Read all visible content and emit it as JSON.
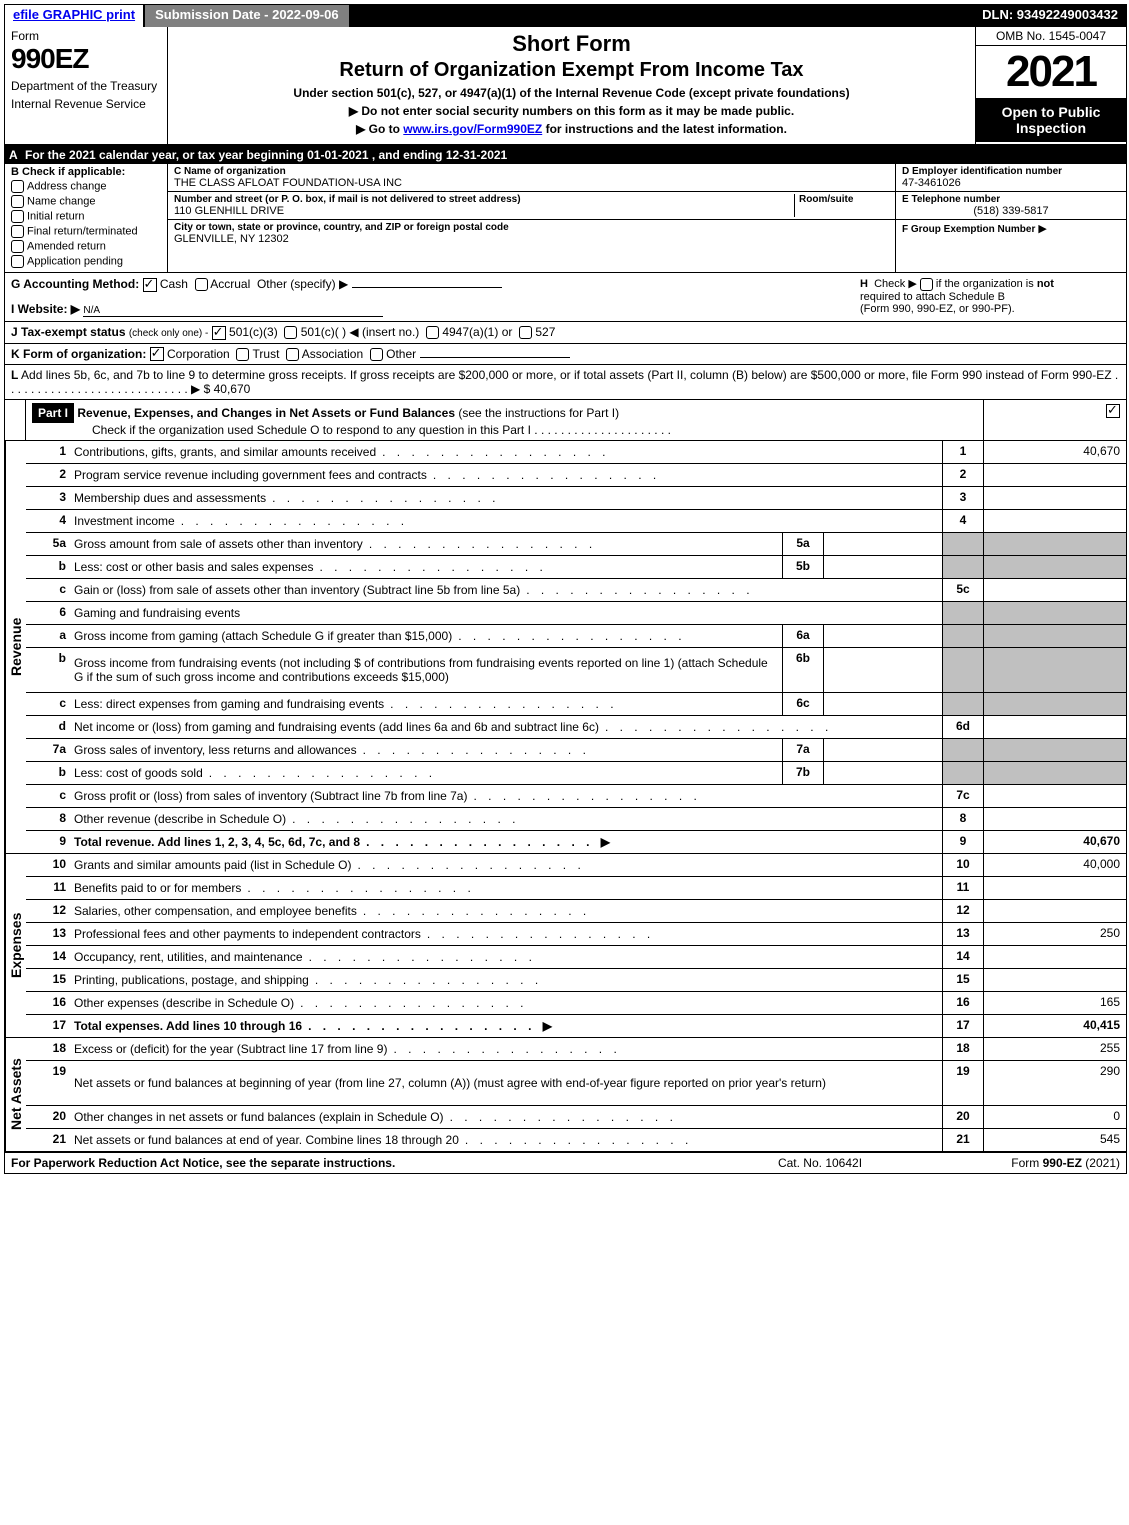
{
  "top_bar": {
    "efile_link": "efile GRAPHIC print",
    "submission_date_label": "Submission Date - 2022-09-06",
    "dln_label": "DLN: 93492249003432"
  },
  "header": {
    "form_word": "Form",
    "form_number": "990EZ",
    "dept": "Department of the Treasury",
    "irs": "Internal Revenue Service",
    "short_form": "Short Form",
    "title": "Return of Organization Exempt From Income Tax",
    "subtitle": "Under section 501(c), 527, or 4947(a)(1) of the Internal Revenue Code (except private foundations)",
    "instr1": "▶ Do not enter social security numbers on this form as it may be made public.",
    "instr2_pre": "▶ Go to ",
    "instr2_link": "www.irs.gov/Form990EZ",
    "instr2_post": " for instructions and the latest information.",
    "omb": "OMB No. 1545-0047",
    "year": "2021",
    "open_public": "Open to Public Inspection"
  },
  "section_a": {
    "label": "A",
    "text": "For the 2021 calendar year, or tax year beginning 01-01-2021 , and ending 12-31-2021"
  },
  "section_b": {
    "label": "B",
    "title": "Check if applicable:",
    "items": [
      "Address change",
      "Name change",
      "Initial return",
      "Final return/terminated",
      "Amended return",
      "Application pending"
    ]
  },
  "section_c": {
    "name_label": "C Name of organization",
    "name": "THE CLASS AFLOAT FOUNDATION-USA INC",
    "addr_label": "Number and street (or P. O. box, if mail is not delivered to street address)",
    "room_label": "Room/suite",
    "addr": "110 GLENHILL DRIVE",
    "city_label": "City or town, state or province, country, and ZIP or foreign postal code",
    "city": "GLENVILLE, NY  12302"
  },
  "section_def": {
    "d_label": "D Employer identification number",
    "d_value": "47-3461026",
    "e_label": "E Telephone number",
    "e_value": "(518) 339-5817",
    "f_label": "F Group Exemption Number",
    "f_arrow": "▶"
  },
  "section_g": {
    "label": "G Accounting Method:",
    "cash": "Cash",
    "accrual": "Accrual",
    "other": "Other (specify) ▶"
  },
  "section_h": {
    "label": "H",
    "text1": "Check ▶",
    "text2": "if the organization is",
    "not": "not",
    "text3": "required to attach Schedule B",
    "text4": "(Form 990, 990-EZ, or 990-PF)."
  },
  "section_i": {
    "label": "I Website: ▶",
    "value": "N/A"
  },
  "section_j": {
    "label": "J Tax-exempt status",
    "sub": "(check only one) -",
    "opt1": "501(c)(3)",
    "opt2": "501(c)(  ) ◀ (insert no.)",
    "opt3": "4947(a)(1) or",
    "opt4": "527"
  },
  "section_k": {
    "label": "K Form of organization:",
    "opts": [
      "Corporation",
      "Trust",
      "Association",
      "Other"
    ]
  },
  "section_l": {
    "label": "L",
    "text": "Add lines 5b, 6c, and 7b to line 9 to determine gross receipts. If gross receipts are $200,000 or more, or if total assets (Part II, column (B) below) are $500,000 or more, file Form 990 instead of Form 990-EZ",
    "amount": "$ 40,670"
  },
  "part1": {
    "header": "Part I",
    "title": "Revenue, Expenses, and Changes in Net Assets or Fund Balances",
    "title_suffix": "(see the instructions for Part I)",
    "check_line": "Check if the organization used Schedule O to respond to any question in this Part I",
    "revenue_label": "Revenue",
    "expenses_label": "Expenses",
    "netassets_label": "Net Assets",
    "rows": [
      {
        "n": "1",
        "desc": "Contributions, gifts, grants, and similar amounts received",
        "line": "1",
        "amt": "40,670"
      },
      {
        "n": "2",
        "desc": "Program service revenue including government fees and contracts",
        "line": "2",
        "amt": ""
      },
      {
        "n": "3",
        "desc": "Membership dues and assessments",
        "line": "3",
        "amt": ""
      },
      {
        "n": "4",
        "desc": "Investment income",
        "line": "4",
        "amt": ""
      },
      {
        "n": "5a",
        "desc": "Gross amount from sale of assets other than inventory",
        "sub": "5a",
        "subval": "",
        "shade": true
      },
      {
        "n": "b",
        "desc": "Less: cost or other basis and sales expenses",
        "sub": "5b",
        "subval": "",
        "shade": true
      },
      {
        "n": "c",
        "desc": "Gain or (loss) from sale of assets other than inventory (Subtract line 5b from line 5a)",
        "line": "5c",
        "amt": ""
      },
      {
        "n": "6",
        "desc": "Gaming and fundraising events",
        "shade": true,
        "noline": true
      },
      {
        "n": "a",
        "desc": "Gross income from gaming (attach Schedule G if greater than $15,000)",
        "sub": "6a",
        "subval": "",
        "shade": true
      },
      {
        "n": "b",
        "desc": "Gross income from fundraising events (not including $                      of contributions from fundraising events reported on line 1) (attach Schedule G if the sum of such gross income and contributions exceeds $15,000)",
        "sub": "6b",
        "subval": "",
        "shade": true,
        "tall": true
      },
      {
        "n": "c",
        "desc": "Less: direct expenses from gaming and fundraising events",
        "sub": "6c",
        "subval": "",
        "shade": true
      },
      {
        "n": "d",
        "desc": "Net income or (loss) from gaming and fundraising events (add lines 6a and 6b and subtract line 6c)",
        "line": "6d",
        "amt": ""
      },
      {
        "n": "7a",
        "desc": "Gross sales of inventory, less returns and allowances",
        "sub": "7a",
        "subval": "",
        "shade": true
      },
      {
        "n": "b",
        "desc": "Less: cost of goods sold",
        "sub": "7b",
        "subval": "",
        "shade": true
      },
      {
        "n": "c",
        "desc": "Gross profit or (loss) from sales of inventory (Subtract line 7b from line 7a)",
        "line": "7c",
        "amt": ""
      },
      {
        "n": "8",
        "desc": "Other revenue (describe in Schedule O)",
        "line": "8",
        "amt": ""
      },
      {
        "n": "9",
        "desc": "Total revenue. Add lines 1, 2, 3, 4, 5c, 6d, 7c, and 8",
        "line": "9",
        "amt": "40,670",
        "bold": true,
        "arrow": true
      }
    ],
    "exp_rows": [
      {
        "n": "10",
        "desc": "Grants and similar amounts paid (list in Schedule O)",
        "line": "10",
        "amt": "40,000"
      },
      {
        "n": "11",
        "desc": "Benefits paid to or for members",
        "line": "11",
        "amt": ""
      },
      {
        "n": "12",
        "desc": "Salaries, other compensation, and employee benefits",
        "line": "12",
        "amt": ""
      },
      {
        "n": "13",
        "desc": "Professional fees and other payments to independent contractors",
        "line": "13",
        "amt": "250"
      },
      {
        "n": "14",
        "desc": "Occupancy, rent, utilities, and maintenance",
        "line": "14",
        "amt": ""
      },
      {
        "n": "15",
        "desc": "Printing, publications, postage, and shipping",
        "line": "15",
        "amt": ""
      },
      {
        "n": "16",
        "desc": "Other expenses (describe in Schedule O)",
        "line": "16",
        "amt": "165"
      },
      {
        "n": "17",
        "desc": "Total expenses. Add lines 10 through 16",
        "line": "17",
        "amt": "40,415",
        "bold": true,
        "arrow": true
      }
    ],
    "na_rows": [
      {
        "n": "18",
        "desc": "Excess or (deficit) for the year (Subtract line 17 from line 9)",
        "line": "18",
        "amt": "255"
      },
      {
        "n": "19",
        "desc": "Net assets or fund balances at beginning of year (from line 27, column (A)) (must agree with end-of-year figure reported on prior year's return)",
        "line": "19",
        "amt": "290",
        "tall": true
      },
      {
        "n": "20",
        "desc": "Other changes in net assets or fund balances (explain in Schedule O)",
        "line": "20",
        "amt": "0"
      },
      {
        "n": "21",
        "desc": "Net assets or fund balances at end of year. Combine lines 18 through 20",
        "line": "21",
        "amt": "545"
      }
    ]
  },
  "footer": {
    "left": "For Paperwork Reduction Act Notice, see the separate instructions.",
    "mid": "Cat. No. 10642I",
    "right_pre": "Form ",
    "right_form": "990-EZ",
    "right_post": " (2021)"
  }
}
